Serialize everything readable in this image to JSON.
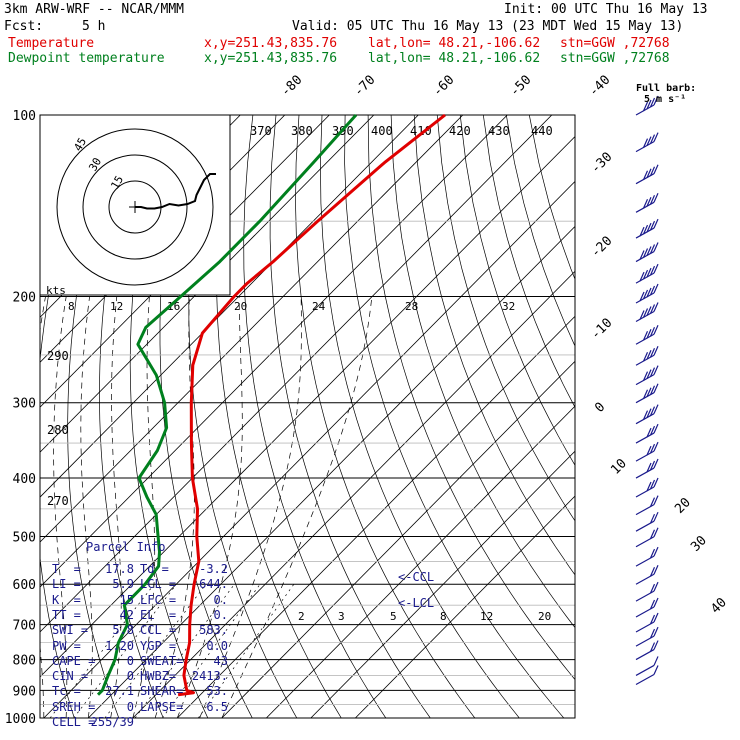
{
  "header": {
    "model": "3km ARW-WRF -- NCAR/MMM",
    "init": "Init: 00 UTC Thu 16 May 13",
    "fcst_label": "Fcst:",
    "fcst_value": "5 h",
    "valid": "Valid: 05 UTC Thu 16 May 13 (23 MDT Wed 15 May 13)"
  },
  "legend": [
    {
      "name": "Temperature",
      "xy": "x,y=251.43,835.76",
      "latlon": "lat,lon= 48.21,-106.62",
      "stn": "stn=GGW ,72768",
      "color": "#e00000"
    },
    {
      "name": "Dewpoint temperature",
      "xy": "x,y=251.43,835.76",
      "latlon": "lat,lon= 48.21,-106.62",
      "stn": "stn=GGW ,72768",
      "color": "#00801e"
    }
  ],
  "barb_key": {
    "line1": "Full barb:",
    "line2": "5 m s⁻¹"
  },
  "hodograph": {
    "unit": "kts",
    "ring_labels": [
      "15",
      "30",
      "45"
    ],
    "path": [
      [
        0,
        0
      ],
      [
        4,
        0
      ],
      [
        8,
        -1
      ],
      [
        13,
        -1
      ],
      [
        18,
        0
      ],
      [
        23,
        2
      ],
      [
        29,
        1
      ],
      [
        35,
        2
      ],
      [
        40,
        4
      ],
      [
        41,
        8
      ],
      [
        43,
        12
      ],
      [
        46,
        18
      ],
      [
        50,
        22
      ],
      [
        54,
        22
      ]
    ]
  },
  "parcel_info": {
    "title": "Parcel Info",
    "rows": [
      [
        "T  =",
        "17.8",
        "Td =",
        "-3.2"
      ],
      [
        "LI =",
        "5.9",
        "LCL =",
        "644."
      ],
      [
        "K  =",
        "15",
        "LFC =",
        "0."
      ],
      [
        "TT =",
        "42",
        "EL  =",
        "0."
      ],
      [
        "SWI =",
        "5.8",
        "CCL =",
        "583."
      ],
      [
        "PW =",
        "1.20",
        "YGP =",
        "0.0"
      ],
      [
        "CAPE =",
        "0",
        "SWEAT=",
        "43"
      ],
      [
        "CIN =",
        "0",
        "HWBZ=",
        "2413."
      ],
      [
        "Tc =",
        "27.1",
        "SHEAR=",
        "53."
      ],
      [
        "SREH =",
        "0",
        "LAPSE=",
        "6.5"
      ],
      [
        "CELL =",
        "255/39",
        "",
        ""
      ]
    ]
  },
  "annotations": {
    "ccl": "<-CCL",
    "lcl": "<-LCL"
  },
  "chart_data": {
    "type": "line",
    "title": "",
    "y_axis": {
      "label": "",
      "scale": "log pressure",
      "ticks": [
        100,
        200,
        300,
        400,
        500,
        600,
        700,
        800,
        900,
        1000
      ],
      "range": [
        1000,
        100
      ]
    },
    "isotherm_labels": [
      "-80",
      "-70",
      "-60",
      "-50",
      "-40",
      "-30",
      "-20",
      "-10",
      "0",
      "10",
      "20",
      "30",
      "40"
    ],
    "theta_labels": [
      "370",
      "380",
      "390",
      "400",
      "410",
      "420",
      "430",
      "440",
      "290",
      "280",
      "270"
    ],
    "mixing_ratio_labels": [
      "8",
      "12",
      "16",
      "20",
      "24",
      "28",
      "32",
      "2",
      "3",
      "5",
      "8",
      "12",
      "20"
    ],
    "series": [
      {
        "name": "Temperature",
        "color": "#e00000",
        "points": [
          [
            100,
            -54
          ],
          [
            120,
            -57
          ],
          [
            150,
            -59
          ],
          [
            175,
            -60
          ],
          [
            190,
            -61
          ],
          [
            200,
            -61
          ],
          [
            230,
            -60
          ],
          [
            260,
            -55
          ],
          [
            300,
            -47
          ],
          [
            350,
            -38
          ],
          [
            400,
            -30
          ],
          [
            450,
            -22
          ],
          [
            500,
            -16
          ],
          [
            550,
            -10
          ],
          [
            600,
            -6
          ],
          [
            650,
            -2
          ],
          [
            700,
            2
          ],
          [
            750,
            6
          ],
          [
            800,
            9
          ],
          [
            850,
            12
          ],
          [
            900,
            16
          ],
          [
            908,
            18
          ],
          [
            915,
            15
          ]
        ]
      },
      {
        "name": "Dewpoint temperature",
        "color": "#00801e",
        "points": [
          [
            100,
            -74
          ],
          [
            120,
            -73
          ],
          [
            150,
            -72
          ],
          [
            175,
            -72
          ],
          [
            200,
            -73
          ],
          [
            225,
            -74
          ],
          [
            240,
            -72
          ],
          [
            270,
            -61
          ],
          [
            300,
            -53
          ],
          [
            330,
            -47
          ],
          [
            360,
            -44
          ],
          [
            400,
            -42
          ],
          [
            430,
            -36
          ],
          [
            460,
            -30
          ],
          [
            490,
            -26
          ],
          [
            530,
            -21
          ],
          [
            560,
            -18
          ],
          [
            600,
            -17
          ],
          [
            650,
            -17
          ],
          [
            700,
            -12
          ],
          [
            750,
            -10
          ],
          [
            800,
            -7
          ],
          [
            850,
            -5
          ],
          [
            900,
            -3
          ],
          [
            915,
            -3
          ]
        ]
      }
    ],
    "wind_barbs_ms": [
      {
        "p": 100,
        "spd": 20
      },
      {
        "p": 115,
        "spd": 20
      },
      {
        "p": 130,
        "spd": 20
      },
      {
        "p": 145,
        "spd": 20
      },
      {
        "p": 160,
        "spd": 25
      },
      {
        "p": 175,
        "spd": 25
      },
      {
        "p": 190,
        "spd": 25
      },
      {
        "p": 205,
        "spd": 25
      },
      {
        "p": 220,
        "spd": 25
      },
      {
        "p": 240,
        "spd": 20
      },
      {
        "p": 260,
        "spd": 20
      },
      {
        "p": 280,
        "spd": 20
      },
      {
        "p": 300,
        "spd": 20
      },
      {
        "p": 325,
        "spd": 20
      },
      {
        "p": 350,
        "spd": 15
      },
      {
        "p": 375,
        "spd": 15
      },
      {
        "p": 400,
        "spd": 15
      },
      {
        "p": 430,
        "spd": 15
      },
      {
        "p": 460,
        "spd": 10
      },
      {
        "p": 490,
        "spd": 10
      },
      {
        "p": 520,
        "spd": 10
      },
      {
        "p": 560,
        "spd": 10
      },
      {
        "p": 600,
        "spd": 10
      },
      {
        "p": 640,
        "spd": 10
      },
      {
        "p": 680,
        "spd": 10
      },
      {
        "p": 720,
        "spd": 10
      },
      {
        "p": 760,
        "spd": 10
      },
      {
        "p": 800,
        "spd": 10
      },
      {
        "p": 850,
        "spd": 5
      },
      {
        "p": 880,
        "spd": 5
      }
    ],
    "grid": true
  }
}
